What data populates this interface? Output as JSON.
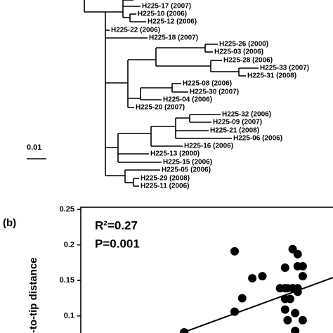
{
  "tree": {
    "labels": [
      "H225-17 (2007)",
      "H225-10 (2006)",
      "H225-12 (2006)",
      "H225-22 (2006)",
      "H225-18 (2007)",
      "H225-26 (2000)",
      "H225-03 (2006)",
      "H225-28 (2006)",
      "H225-33 (2007)",
      "H225-31 (2008)",
      "H225-08 (2006)",
      "H225-30 (2007)",
      "H225-04 (2006)",
      "H225-20 (2007)",
      "H225-32 (2006)",
      "H225-09 (2007)",
      "H225-21 (2008)",
      "H225-06 (2006)",
      "H225-16 (2006)",
      "H225-13 (2000)",
      "H225-15 (2006)",
      "H225-05 (2006)",
      "H225-29 (2008)",
      "H225-11 (2006)"
    ],
    "scale_bar": "0.01"
  },
  "chart_data": {
    "type": "scatter",
    "panel_label": "(b)",
    "y_label": "-to-tip distance",
    "annotations": [
      "R²=0.27",
      "P=0.001"
    ],
    "x": [
      0.61,
      0.84,
      0.86,
      0.81,
      0.86,
      0.88,
      0.72,
      0.68,
      0.64,
      0.61,
      0.79,
      0.81,
      0.82,
      0.84,
      0.86,
      0.88,
      0.81,
      0.83,
      0.86,
      0.81,
      0.85,
      0.88,
      0.82,
      0.85,
      0.41
    ],
    "values": [
      0.191,
      0.194,
      0.187,
      0.168,
      0.17,
      0.17,
      0.156,
      0.153,
      0.125,
      0.106,
      0.139,
      0.139,
      0.139,
      0.139,
      0.139,
      0.156,
      0.124,
      0.124,
      0.134,
      0.109,
      0.104,
      0.094,
      0.094,
      0.079,
      0.077
    ],
    "fit": {
      "x": [
        0.4,
        1.0
      ],
      "y": [
        0.076,
        0.154
      ]
    },
    "color": "#000000",
    "xlim": [
      0,
      1
    ],
    "ylim": [
      0.076,
      0.253
    ],
    "yticks": [
      0.25,
      0.2,
      0.15,
      0.1
    ]
  }
}
